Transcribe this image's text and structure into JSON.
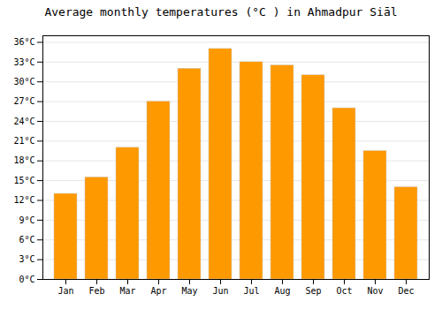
{
  "chart_data": {
    "type": "bar",
    "title": "Average monthly temperatures (°C ) in Ahmadpur Siāl",
    "categories": [
      "Jan",
      "Feb",
      "Mar",
      "Apr",
      "May",
      "Jun",
      "Jul",
      "Aug",
      "Sep",
      "Oct",
      "Nov",
      "Dec"
    ],
    "values": [
      13,
      15.5,
      20,
      27,
      32,
      35,
      33,
      32.5,
      31,
      26,
      19.5,
      14
    ],
    "color": "#FF9900",
    "ylim": [
      0,
      37
    ],
    "yticks": [
      {
        "value": 0,
        "label": "0°C"
      },
      {
        "value": 3,
        "label": "3°C"
      },
      {
        "value": 6,
        "label": "6°C"
      },
      {
        "value": 9,
        "label": "9°C"
      },
      {
        "value": 12,
        "label": "12°C"
      },
      {
        "value": 15,
        "label": "15°C"
      },
      {
        "value": 18,
        "label": "18°C"
      },
      {
        "value": 21,
        "label": "21°C"
      },
      {
        "value": 24,
        "label": "24°C"
      },
      {
        "value": 27,
        "label": "27°C"
      },
      {
        "value": 30,
        "label": "30°C"
      },
      {
        "value": 33,
        "label": "33°C"
      },
      {
        "value": 36,
        "label": "36°C"
      }
    ],
    "grid": true
  }
}
